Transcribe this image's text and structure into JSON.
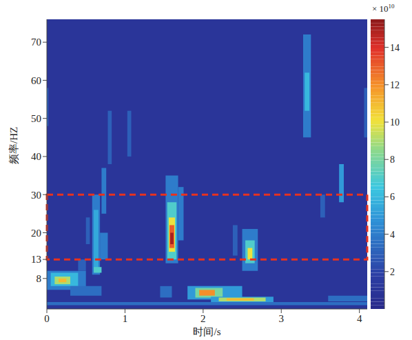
{
  "chart_data": {
    "type": "heatmap",
    "x_label": "时间/s",
    "y_label": "频率/HZ",
    "xlim": [
      0,
      4.1
    ],
    "xticks": [
      0,
      1,
      2,
      3,
      4
    ],
    "ylim": [
      0,
      76
    ],
    "yticks": [
      8,
      13,
      20,
      30,
      40,
      50,
      60,
      70
    ],
    "background": 1,
    "cells": [
      [
        0,
        4.1,
        1,
        1.8,
        3.5
      ],
      [
        0,
        0.5,
        5,
        10,
        4
      ],
      [
        0.05,
        0.4,
        6,
        9.5,
        6
      ],
      [
        0.1,
        0.3,
        6.5,
        8.5,
        9
      ],
      [
        0.15,
        0.25,
        7,
        8,
        11
      ],
      [
        0.3,
        0.7,
        3.5,
        6,
        3.5
      ],
      [
        0.4,
        0.5,
        10,
        13,
        3
      ],
      [
        0.5,
        0.55,
        17,
        24,
        3
      ],
      [
        0.58,
        0.68,
        9,
        30,
        4
      ],
      [
        0.6,
        0.66,
        10,
        26,
        5.5
      ],
      [
        0.6,
        0.7,
        9.5,
        11,
        7
      ],
      [
        0.68,
        0.78,
        13,
        20,
        4
      ],
      [
        0.7,
        0.76,
        25,
        37,
        4
      ],
      [
        0.78,
        0.83,
        38,
        52,
        3
      ],
      [
        1.03,
        1.08,
        40,
        52,
        3
      ],
      [
        1.45,
        1.6,
        3,
        6,
        3.5
      ],
      [
        1.52,
        1.68,
        12,
        35,
        4
      ],
      [
        1.54,
        1.66,
        13,
        28,
        7
      ],
      [
        1.56,
        1.64,
        15,
        24,
        10
      ],
      [
        1.57,
        1.63,
        16,
        22,
        13
      ],
      [
        1.58,
        1.62,
        17,
        20,
        15
      ],
      [
        1.68,
        1.75,
        18,
        32,
        4
      ],
      [
        1.8,
        2.5,
        2.5,
        6,
        5
      ],
      [
        1.9,
        2.25,
        3,
        5.5,
        8
      ],
      [
        1.95,
        2.15,
        3.5,
        5,
        12
      ],
      [
        2.1,
        2.9,
        1.8,
        3.2,
        5
      ],
      [
        2.2,
        2.8,
        2,
        3,
        9
      ],
      [
        2.3,
        2.65,
        2.2,
        2.8,
        11
      ],
      [
        2.38,
        2.44,
        14,
        22,
        3
      ],
      [
        2.5,
        2.7,
        10,
        21,
        4
      ],
      [
        2.54,
        2.66,
        12,
        18,
        7
      ],
      [
        2.57,
        2.63,
        13,
        16,
        10
      ],
      [
        3.28,
        3.38,
        45,
        72,
        4
      ],
      [
        3.3,
        3.36,
        52,
        62,
        6
      ],
      [
        3.5,
        3.56,
        24,
        30,
        3
      ],
      [
        3.6,
        4.1,
        2,
        3.5,
        3.5
      ],
      [
        3.74,
        3.8,
        28,
        38,
        5
      ],
      [
        0,
        0.02,
        48,
        58,
        3
      ],
      [
        4.06,
        4.1,
        45,
        58,
        3
      ]
    ],
    "highlight_band": {
      "ylim": [
        13,
        30
      ],
      "color": "#e8321e",
      "line_style": "dashed"
    },
    "colorbar": {
      "range": [
        0,
        15.5
      ],
      "ticks": [
        2,
        4,
        6,
        8,
        10,
        12,
        14
      ],
      "multiplier": {
        "base": "× 10",
        "exponent": "10"
      }
    }
  }
}
